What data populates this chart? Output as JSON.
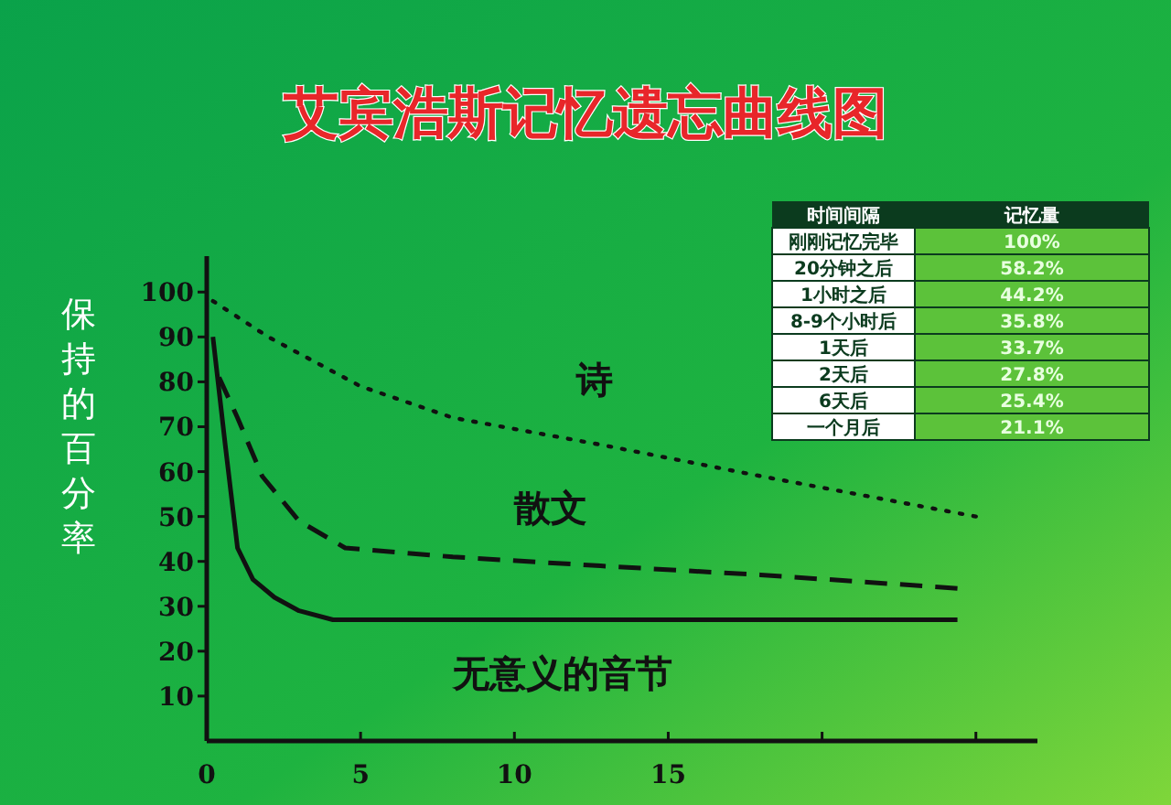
{
  "chart_data": [
    {
      "type": "line",
      "title": "艾宾浩斯记忆遗忘曲线图",
      "ylabel": "保持的百分率",
      "xlim": [
        0,
        27
      ],
      "ylim": [
        0,
        108
      ],
      "xticks": [
        0,
        5,
        10,
        15,
        {
          "value": 20,
          "label": null
        },
        {
          "value": 25,
          "label": null
        }
      ],
      "yticks": [
        10,
        20,
        30,
        40,
        50,
        60,
        70,
        80,
        90,
        100
      ],
      "grid": false,
      "marker": "none",
      "series": [
        {
          "name": "诗",
          "color": "#111111",
          "line_style": "dotted",
          "x": [
            0.2,
            2,
            5,
            8,
            12.8,
            18,
            25
          ],
          "values": [
            98,
            90,
            79,
            72,
            66,
            59,
            50
          ]
        },
        {
          "name": "散文",
          "color": "#111111",
          "line_style": "dashed",
          "x": [
            0.4,
            1,
            1.8,
            3,
            4.5,
            8,
            12.8,
            18,
            24.4
          ],
          "values": [
            81,
            72,
            59,
            49,
            43,
            41,
            39,
            37,
            34
          ]
        },
        {
          "name": "无意义的音节",
          "color": "#111111",
          "line_style": "solid",
          "x": [
            0.2,
            0.6,
            1,
            1.5,
            2.2,
            3,
            4.1,
            24.4
          ],
          "values": [
            90,
            66,
            43,
            36,
            32,
            29,
            27,
            27
          ]
        }
      ]
    },
    {
      "type": "other",
      "xlabel": "时间间隔",
      "ylabel": "记忆量",
      "categories": [
        "刚刚记忆完毕",
        "20分钟之后",
        "1小时之后",
        "8-9个小时后",
        "1天后",
        "2天后",
        "6天后",
        "一个月后"
      ],
      "value_labels": [
        "100%",
        "58.2%",
        "44.2%",
        "35.8%",
        "33.7%",
        "27.8%",
        "25.4%",
        "21.1%"
      ]
    }
  ]
}
